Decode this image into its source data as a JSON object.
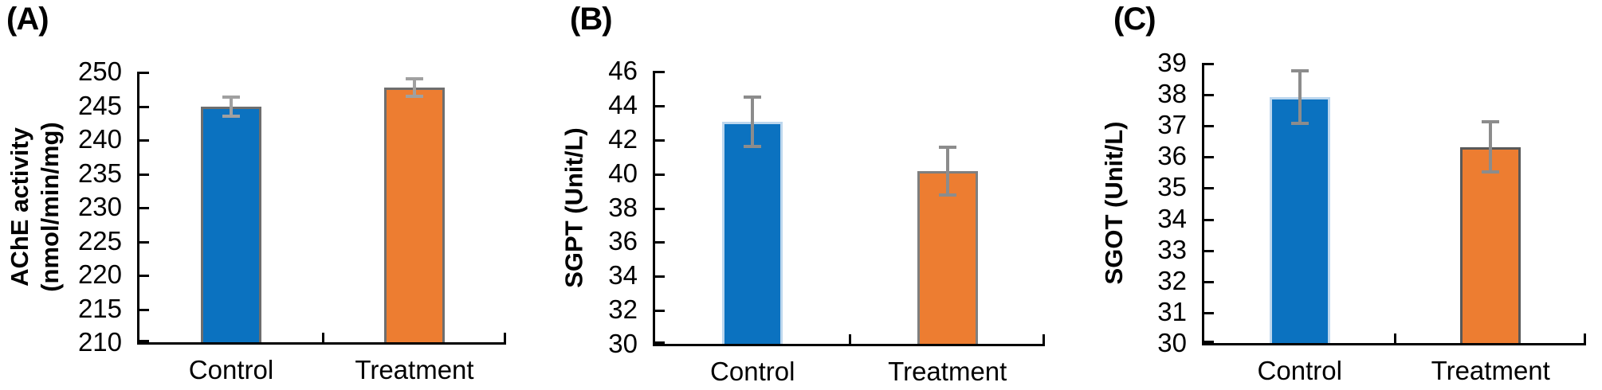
{
  "figure_background": "#ffffff",
  "axis_color": "#000000",
  "chart_data": [
    {
      "type": "bar",
      "panel_label": "(A)",
      "ylabel_lines": [
        "AChE activity",
        "(nmol/min/mg)"
      ],
      "categories": [
        "Control",
        "Treatment"
      ],
      "values": [
        244.8,
        247.6
      ],
      "errors": [
        1.4,
        1.3
      ],
      "bar_colors": [
        "#0B72C0",
        "#ED7D31"
      ],
      "bar_borders": [
        "#6E6E6E",
        "#6E6E6E"
      ],
      "error_color": "#A0A0A0",
      "ylim": [
        210,
        250
      ],
      "yticks": [
        250,
        245,
        240,
        235,
        230,
        225,
        220,
        215,
        210
      ],
      "grid": false,
      "legend": "none"
    },
    {
      "type": "bar",
      "panel_label": "(B)",
      "ylabel_lines": [
        "SGPT (Unit/L)"
      ],
      "categories": [
        "Control",
        "Treatment"
      ],
      "values": [
        43.0,
        40.1
      ],
      "errors": [
        1.45,
        1.4
      ],
      "bar_colors": [
        "#0B72C0",
        "#ED7D31"
      ],
      "bar_borders": [
        "#BDD7EE",
        "#7F7F7F"
      ],
      "error_color": "#8C8C8C",
      "ylim": [
        30,
        46
      ],
      "yticks": [
        46,
        44,
        42,
        40,
        38,
        36,
        34,
        32,
        30
      ],
      "grid": false,
      "legend": "none"
    },
    {
      "type": "bar",
      "panel_label": "(C)",
      "ylabel_lines": [
        "SGOT (Unit/L)"
      ],
      "categories": [
        "Control",
        "Treatment"
      ],
      "values": [
        37.9,
        36.3
      ],
      "errors": [
        0.85,
        0.8
      ],
      "bar_colors": [
        "#0B72C0",
        "#ED7D31"
      ],
      "bar_borders": [
        "#BDD7EE",
        "#595959"
      ],
      "error_color": "#8C8C8C",
      "ylim": [
        30,
        39
      ],
      "yticks": [
        39,
        38,
        37,
        36,
        35,
        34,
        33,
        32,
        31,
        30
      ],
      "grid": false,
      "legend": "none"
    }
  ]
}
